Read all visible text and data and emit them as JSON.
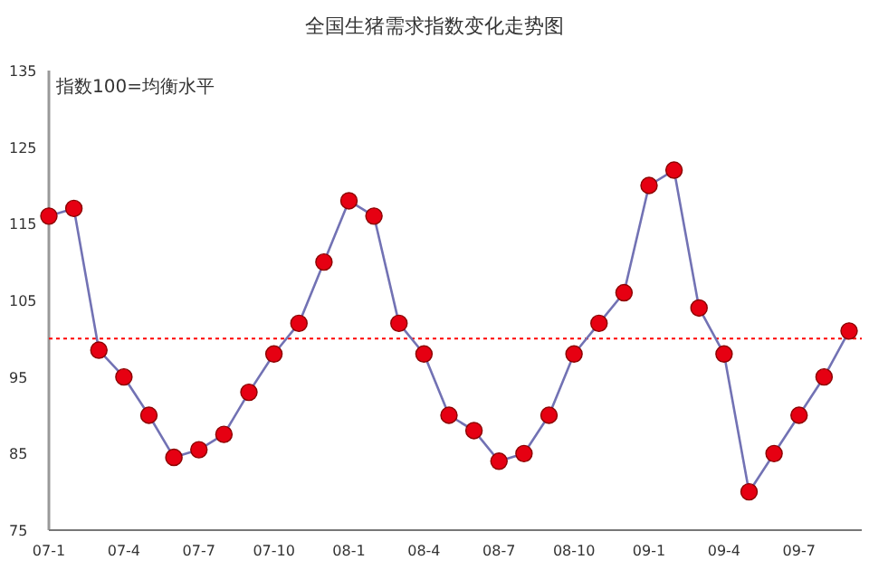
{
  "chart_data": {
    "type": "line",
    "title": "全国生猪需求指数变化走势图",
    "annotations": [
      "指数100=均衡水平"
    ],
    "categories": [
      "07-1",
      null,
      null,
      "07-4",
      null,
      null,
      "07-7",
      null,
      null,
      "07-10",
      null,
      null,
      "08-1",
      null,
      null,
      "08-4",
      null,
      null,
      "08-7",
      null,
      null,
      "08-10",
      null,
      null,
      "09-1",
      null,
      null,
      "09-4",
      null,
      null,
      "09-7",
      null,
      null
    ],
    "series": [
      {
        "color": "#7272b4",
        "values": [
          116,
          117,
          98.5,
          95,
          90,
          84.5,
          85.5,
          87.5,
          93,
          98,
          102,
          110,
          118,
          116,
          102,
          98,
          90,
          88,
          84,
          85,
          90,
          98,
          102,
          106,
          120,
          122,
          104,
          98,
          80,
          85,
          90,
          95,
          101
        ]
      }
    ],
    "marker": "circle",
    "line_style": "solid",
    "ylim": [
      75,
      135
    ],
    "yticks": [
      75,
      85,
      95,
      105,
      115,
      125,
      135
    ],
    "ref_lines": [
      {
        "axis": "y",
        "value": 100,
        "color": "#ff0000",
        "line_style": "dotted"
      }
    ]
  }
}
